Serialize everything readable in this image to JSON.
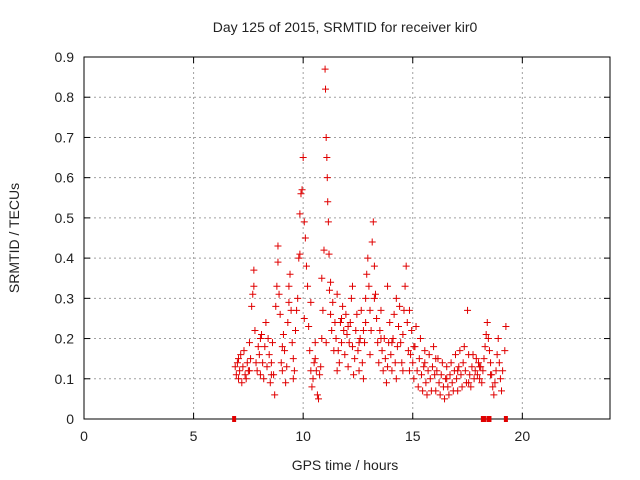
{
  "chart_data": {
    "type": "scatter",
    "title": "Day 125 of 2015, SRMTID for receiver kir0",
    "xlabel": "GPS time / hours",
    "ylabel": "SRMTID / TECUs",
    "xlim": [
      0,
      24
    ],
    "ylim": [
      0,
      0.9
    ],
    "xticks": [
      0,
      5,
      10,
      15,
      20
    ],
    "yticks": [
      0,
      0.1,
      0.2,
      0.3,
      0.4,
      0.5,
      0.6,
      0.7,
      0.8,
      0.9
    ],
    "grid": true,
    "marker": "+",
    "color": "#e00000",
    "series": [
      {
        "name": "SRMTID kir0",
        "points": [
          [
            6.9,
            0.13
          ],
          [
            6.95,
            0.11
          ],
          [
            7.0,
            0.14
          ],
          [
            7.05,
            0.1
          ],
          [
            7.1,
            0.12
          ],
          [
            7.15,
            0.16
          ],
          [
            7.2,
            0.09
          ],
          [
            7.25,
            0.13
          ],
          [
            7.3,
            0.17
          ],
          [
            7.35,
            0.11
          ],
          [
            7.4,
            0.1
          ],
          [
            7.45,
            0.14
          ],
          [
            7.5,
            0.12
          ],
          [
            7.55,
            0.19
          ],
          [
            7.6,
            0.15
          ],
          [
            7.65,
            0.28
          ],
          [
            7.7,
            0.31
          ],
          [
            7.75,
            0.37
          ],
          [
            7.8,
            0.22
          ],
          [
            7.85,
            0.14
          ],
          [
            7.9,
            0.12
          ],
          [
            7.95,
            0.18
          ],
          [
            8.0,
            0.16
          ],
          [
            8.05,
            0.11
          ],
          [
            8.1,
            0.21
          ],
          [
            8.15,
            0.14
          ],
          [
            8.2,
            0.1
          ],
          [
            8.25,
            0.18
          ],
          [
            8.3,
            0.24
          ],
          [
            8.35,
            0.13
          ],
          [
            8.4,
            0.2
          ],
          [
            8.45,
            0.16
          ],
          [
            8.5,
            0.09
          ],
          [
            8.55,
            0.14
          ],
          [
            8.6,
            0.19
          ],
          [
            8.65,
            0.11
          ],
          [
            8.7,
            0.06
          ],
          [
            8.75,
            0.28
          ],
          [
            8.8,
            0.33
          ],
          [
            8.85,
            0.43
          ],
          [
            8.9,
            0.31
          ],
          [
            8.95,
            0.26
          ],
          [
            9.0,
            0.14
          ],
          [
            9.05,
            0.12
          ],
          [
            9.1,
            0.21
          ],
          [
            9.15,
            0.17
          ],
          [
            9.2,
            0.09
          ],
          [
            9.25,
            0.13
          ],
          [
            9.3,
            0.24
          ],
          [
            9.35,
            0.29
          ],
          [
            9.4,
            0.36
          ],
          [
            9.45,
            0.27
          ],
          [
            9.5,
            0.19
          ],
          [
            9.55,
            0.15
          ],
          [
            9.6,
            0.12
          ],
          [
            9.65,
            0.22
          ],
          [
            9.7,
            0.27
          ],
          [
            9.75,
            0.3
          ],
          [
            9.8,
            0.4
          ],
          [
            9.85,
            0.51
          ],
          [
            9.9,
            0.56
          ],
          [
            9.95,
            0.57
          ],
          [
            10.0,
            0.65
          ],
          [
            10.05,
            0.49
          ],
          [
            10.1,
            0.45
          ],
          [
            10.15,
            0.38
          ],
          [
            10.2,
            0.33
          ],
          [
            10.25,
            0.23
          ],
          [
            10.3,
            0.17
          ],
          [
            10.35,
            0.12
          ],
          [
            10.4,
            0.08
          ],
          [
            10.45,
            0.1
          ],
          [
            10.5,
            0.14
          ],
          [
            10.55,
            0.19
          ],
          [
            10.6,
            0.12
          ],
          [
            10.65,
            0.06
          ],
          [
            10.7,
            0.05
          ],
          [
            10.75,
            0.11
          ],
          [
            10.8,
            0.13
          ],
          [
            10.85,
            0.2
          ],
          [
            10.9,
            0.27
          ],
          [
            10.95,
            0.42
          ],
          [
            11.0,
            0.87
          ],
          [
            11.02,
            0.82
          ],
          [
            11.05,
            0.7
          ],
          [
            11.08,
            0.65
          ],
          [
            11.1,
            0.6
          ],
          [
            11.12,
            0.54
          ],
          [
            11.15,
            0.49
          ],
          [
            11.18,
            0.41
          ],
          [
            11.2,
            0.32
          ],
          [
            11.25,
            0.26
          ],
          [
            11.3,
            0.22
          ],
          [
            11.35,
            0.29
          ],
          [
            11.4,
            0.17
          ],
          [
            11.45,
            0.24
          ],
          [
            11.5,
            0.2
          ],
          [
            11.55,
            0.31
          ],
          [
            11.6,
            0.17
          ],
          [
            11.65,
            0.14
          ],
          [
            11.7,
            0.24
          ],
          [
            11.75,
            0.19
          ],
          [
            11.8,
            0.28
          ],
          [
            11.85,
            0.22
          ],
          [
            11.9,
            0.16
          ],
          [
            11.95,
            0.26
          ],
          [
            12.0,
            0.21
          ],
          [
            12.05,
            0.13
          ],
          [
            12.1,
            0.19
          ],
          [
            12.15,
            0.24
          ],
          [
            12.2,
            0.3
          ],
          [
            12.25,
            0.18
          ],
          [
            12.3,
            0.11
          ],
          [
            12.35,
            0.15
          ],
          [
            12.4,
            0.22
          ],
          [
            12.45,
            0.26
          ],
          [
            12.5,
            0.17
          ],
          [
            12.55,
            0.12
          ],
          [
            12.6,
            0.2
          ],
          [
            12.65,
            0.27
          ],
          [
            12.7,
            0.14
          ],
          [
            12.75,
            0.1
          ],
          [
            12.8,
            0.19
          ],
          [
            12.85,
            0.24
          ],
          [
            12.9,
            0.36
          ],
          [
            12.95,
            0.4
          ],
          [
            13.0,
            0.33
          ],
          [
            13.05,
            0.27
          ],
          [
            13.1,
            0.22
          ],
          [
            13.15,
            0.44
          ],
          [
            13.2,
            0.49
          ],
          [
            13.25,
            0.38
          ],
          [
            13.3,
            0.31
          ],
          [
            13.35,
            0.25
          ],
          [
            13.4,
            0.19
          ],
          [
            13.45,
            0.14
          ],
          [
            13.5,
            0.22
          ],
          [
            13.55,
            0.27
          ],
          [
            13.6,
            0.17
          ],
          [
            13.65,
            0.12
          ],
          [
            13.7,
            0.2
          ],
          [
            13.75,
            0.15
          ],
          [
            13.8,
            0.09
          ],
          [
            13.85,
            0.13
          ],
          [
            13.9,
            0.19
          ],
          [
            13.95,
            0.24
          ],
          [
            14.0,
            0.16
          ],
          [
            14.05,
            0.12
          ],
          [
            14.1,
            0.2
          ],
          [
            14.15,
            0.26
          ],
          [
            14.2,
            0.14
          ],
          [
            14.25,
            0.1
          ],
          [
            14.3,
            0.18
          ],
          [
            14.35,
            0.23
          ],
          [
            14.4,
            0.28
          ],
          [
            14.45,
            0.19
          ],
          [
            14.5,
            0.14
          ],
          [
            14.55,
            0.21
          ],
          [
            14.6,
            0.27
          ],
          [
            14.65,
            0.33
          ],
          [
            14.7,
            0.38
          ],
          [
            14.75,
            0.24
          ],
          [
            14.8,
            0.17
          ],
          [
            14.85,
            0.12
          ],
          [
            14.9,
            0.16
          ],
          [
            14.95,
            0.22
          ],
          [
            15.0,
            0.14
          ],
          [
            15.05,
            0.1
          ],
          [
            15.1,
            0.18
          ],
          [
            15.15,
            0.23
          ],
          [
            15.2,
            0.12
          ],
          [
            15.25,
            0.08
          ],
          [
            15.3,
            0.15
          ],
          [
            15.35,
            0.2
          ],
          [
            15.4,
            0.11
          ],
          [
            15.45,
            0.07
          ],
          [
            15.5,
            0.13
          ],
          [
            15.55,
            0.17
          ],
          [
            15.6,
            0.09
          ],
          [
            15.65,
            0.06
          ],
          [
            15.7,
            0.12
          ],
          [
            15.75,
            0.16
          ],
          [
            15.8,
            0.1
          ],
          [
            15.85,
            0.07
          ],
          [
            15.9,
            0.13
          ],
          [
            15.95,
            0.18
          ],
          [
            16.0,
            0.11
          ],
          [
            16.05,
            0.07
          ],
          [
            16.1,
            0.12
          ],
          [
            16.15,
            0.15
          ],
          [
            16.2,
            0.09
          ],
          [
            16.25,
            0.06
          ],
          [
            16.3,
            0.11
          ],
          [
            16.35,
            0.14
          ],
          [
            16.4,
            0.08
          ],
          [
            16.45,
            0.05
          ],
          [
            16.5,
            0.1
          ],
          [
            16.55,
            0.13
          ],
          [
            16.6,
            0.08
          ],
          [
            16.65,
            0.06
          ],
          [
            16.7,
            0.11
          ],
          [
            16.75,
            0.14
          ],
          [
            16.8,
            0.09
          ],
          [
            16.85,
            0.07
          ],
          [
            16.9,
            0.12
          ],
          [
            16.95,
            0.16
          ],
          [
            17.0,
            0.1
          ],
          [
            17.05,
            0.07
          ],
          [
            17.1,
            0.13
          ],
          [
            17.15,
            0.17
          ],
          [
            17.2,
            0.11
          ],
          [
            17.25,
            0.08
          ],
          [
            17.3,
            0.14
          ],
          [
            17.35,
            0.18
          ],
          [
            17.4,
            0.12
          ],
          [
            17.45,
            0.09
          ],
          [
            17.5,
            0.27
          ],
          [
            17.55,
            0.16
          ],
          [
            17.6,
            0.11
          ],
          [
            17.65,
            0.08
          ],
          [
            17.7,
            0.13
          ],
          [
            17.75,
            0.16
          ],
          [
            17.8,
            0.1
          ],
          [
            17.85,
            0.12
          ],
          [
            17.9,
            0.15
          ],
          [
            17.95,
            0.11
          ],
          [
            18.0,
            0.14
          ],
          [
            18.05,
            0.1
          ],
          [
            18.1,
            0.13
          ],
          [
            18.15,
            0.09
          ],
          [
            18.2,
            0.12
          ],
          [
            18.25,
            0.15
          ],
          [
            18.3,
            0.18
          ],
          [
            18.35,
            0.21
          ],
          [
            18.4,
            0.24
          ],
          [
            18.45,
            0.2
          ],
          [
            18.5,
            0.17
          ],
          [
            18.55,
            0.14
          ],
          [
            18.6,
            0.11
          ],
          [
            18.65,
            0.08
          ],
          [
            18.7,
            0.06
          ],
          [
            18.75,
            0.09
          ],
          [
            18.8,
            0.12
          ],
          [
            18.85,
            0.16
          ],
          [
            18.9,
            0.2
          ],
          [
            18.95,
            0.14
          ],
          [
            19.0,
            0.1
          ],
          [
            19.05,
            0.07
          ],
          [
            19.1,
            0.12
          ],
          [
            19.2,
            0.17
          ],
          [
            19.25,
            0.23
          ],
          [
            7.05,
            0.15
          ],
          [
            7.55,
            0.12
          ],
          [
            8.05,
            0.2
          ],
          [
            8.55,
            0.11
          ],
          [
            9.05,
            0.18
          ],
          [
            9.55,
            0.1
          ],
          [
            10.05,
            0.25
          ],
          [
            10.55,
            0.15
          ],
          [
            11.05,
            0.19
          ],
          [
            11.55,
            0.12
          ],
          [
            12.05,
            0.23
          ],
          [
            12.55,
            0.19
          ],
          [
            13.05,
            0.16
          ],
          [
            13.55,
            0.2
          ],
          [
            14.05,
            0.19
          ],
          [
            14.55,
            0.12
          ],
          [
            15.05,
            0.18
          ],
          [
            15.55,
            0.14
          ],
          [
            16.05,
            0.15
          ],
          [
            16.55,
            0.1
          ],
          [
            17.05,
            0.12
          ],
          [
            17.55,
            0.09
          ],
          [
            18.05,
            0.13
          ],
          [
            18.55,
            0.11
          ],
          [
            8.85,
            0.39
          ],
          [
            9.85,
            0.41
          ],
          [
            10.85,
            0.35
          ],
          [
            12.85,
            0.3
          ],
          [
            13.85,
            0.33
          ],
          [
            14.85,
            0.27
          ],
          [
            11.25,
            0.34
          ],
          [
            12.25,
            0.33
          ],
          [
            13.25,
            0.3
          ],
          [
            14.25,
            0.3
          ],
          [
            7.75,
            0.33
          ],
          [
            9.35,
            0.33
          ],
          [
            10.35,
            0.29
          ],
          [
            11.75,
            0.25
          ],
          [
            12.75,
            0.22
          ]
        ]
      }
    ],
    "data_gaps": [
      6.85,
      18.2,
      18.25,
      18.45,
      18.5,
      19.25
    ]
  }
}
